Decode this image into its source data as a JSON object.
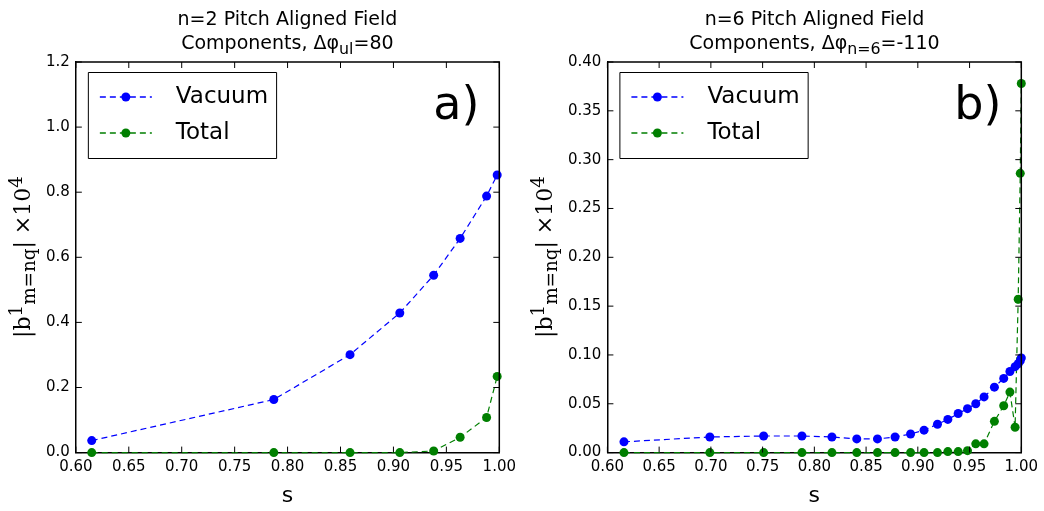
{
  "chart_data": [
    {
      "type": "line",
      "title": "n=2 Pitch Aligned Field\nComponents, Δφ$_{ul}$=80",
      "xlabel": "s",
      "ylabel": "|b$^{1}$$_{m=nq}$| ×10$^{4}$",
      "series": [
        {
          "name": "Vacuum",
          "color": "#0000ff",
          "x": [
            0.615,
            0.787,
            0.859,
            0.906,
            0.938,
            0.963,
            0.988,
            0.998
          ],
          "values": [
            0.037,
            0.163,
            0.301,
            0.429,
            0.545,
            0.658,
            0.788,
            0.853
          ]
        },
        {
          "name": "Total",
          "color": "#007f00",
          "x": [
            0.615,
            0.787,
            0.859,
            0.906,
            0.938,
            0.963,
            0.988,
            0.998
          ],
          "values": [
            0,
            0,
            0,
            0,
            0.005,
            0.047,
            0.108,
            0.234
          ]
        }
      ],
      "xlim": [
        0.6,
        1.0
      ],
      "ylim": [
        0,
        1.2
      ],
      "xticks": [
        {
          "value": 0.6,
          "label": "0.60"
        },
        {
          "value": 0.65,
          "label": "0.65"
        },
        {
          "value": 0.7,
          "label": "0.70"
        },
        {
          "value": 0.75,
          "label": "0.75"
        },
        {
          "value": 0.8,
          "label": "0.80"
        },
        {
          "value": 0.85,
          "label": "0.85"
        },
        {
          "value": 0.9,
          "label": "0.90"
        },
        {
          "value": 0.95,
          "label": "0.95"
        },
        {
          "value": 1.0,
          "label": "1.00"
        }
      ],
      "yticks": [
        {
          "value": 0,
          "label": "0.0"
        },
        {
          "value": 0.2,
          "label": "0.2"
        },
        {
          "value": 0.4,
          "label": "0.4"
        },
        {
          "value": 0.6,
          "label": "0.6"
        },
        {
          "value": 0.8,
          "label": "0.8"
        },
        {
          "value": 1.0,
          "label": "1.0"
        },
        {
          "value": 1.2,
          "label": "1.2"
        }
      ],
      "annotations": [
        "a)"
      ],
      "legend": "top left",
      "grid": false,
      "marker": "circle",
      "line_style": "dashed"
    },
    {
      "type": "line",
      "title": "n=6 Pitch Aligned Field\nComponents, Δφ$_{n=6}$=-110",
      "xlabel": "s",
      "ylabel": "|b$^{1}$$_{m=nq}$| ×10$^{4}$",
      "series": [
        {
          "name": "Vacuum",
          "color": "#0000ff",
          "x": [
            0.616,
            0.699,
            0.751,
            0.788,
            0.817,
            0.841,
            0.861,
            0.878,
            0.893,
            0.906,
            0.919,
            0.929,
            0.939,
            0.948,
            0.956,
            0.964,
            0.974,
            0.983,
            0.989,
            0.994,
            0.997,
            0.999,
            1.0
          ],
          "values": [
            0.011,
            0.016,
            0.017,
            0.017,
            0.016,
            0.014,
            0.014,
            0.016,
            0.019,
            0.023,
            0.029,
            0.034,
            0.04,
            0.045,
            0.05,
            0.057,
            0.067,
            0.076,
            0.083,
            0.088,
            0.091,
            0.094,
            0.097
          ]
        },
        {
          "name": "Total",
          "color": "#007f00",
          "x": [
            0.616,
            0.699,
            0.751,
            0.788,
            0.817,
            0.841,
            0.861,
            0.878,
            0.893,
            0.906,
            0.919,
            0.929,
            0.939,
            0.948,
            0.956,
            0.964,
            0.974,
            0.983,
            0.989,
            0.994,
            0.997,
            0.999,
            1.0
          ],
          "values": [
            0,
            0,
            0,
            0,
            0,
            0,
            0,
            0,
            0,
            0,
            0,
            0.001,
            0.001,
            0.002,
            0.009,
            0.009,
            0.032,
            0.048,
            0.062,
            0.026,
            0.157,
            0.286,
            0.378
          ]
        }
      ],
      "xlim": [
        0.6,
        1.0
      ],
      "ylim": [
        0,
        0.4
      ],
      "xticks": [
        {
          "value": 0.6,
          "label": "0.60"
        },
        {
          "value": 0.65,
          "label": "0.65"
        },
        {
          "value": 0.7,
          "label": "0.70"
        },
        {
          "value": 0.75,
          "label": "0.75"
        },
        {
          "value": 0.8,
          "label": "0.80"
        },
        {
          "value": 0.85,
          "label": "0.85"
        },
        {
          "value": 0.9,
          "label": "0.90"
        },
        {
          "value": 0.95,
          "label": "0.95"
        },
        {
          "value": 1.0,
          "label": "1.00"
        }
      ],
      "yticks": [
        {
          "value": 0,
          "label": "0.00"
        },
        {
          "value": 0.05,
          "label": "0.05"
        },
        {
          "value": 0.1,
          "label": "0.10"
        },
        {
          "value": 0.15,
          "label": "0.15"
        },
        {
          "value": 0.2,
          "label": "0.20"
        },
        {
          "value": 0.25,
          "label": "0.25"
        },
        {
          "value": 0.3,
          "label": "0.30"
        },
        {
          "value": 0.35,
          "label": "0.35"
        },
        {
          "value": 0.4,
          "label": "0.40"
        }
      ],
      "annotations": [
        "b)"
      ],
      "legend": "top left",
      "grid": false,
      "marker": "circle",
      "line_style": "dashed"
    }
  ]
}
